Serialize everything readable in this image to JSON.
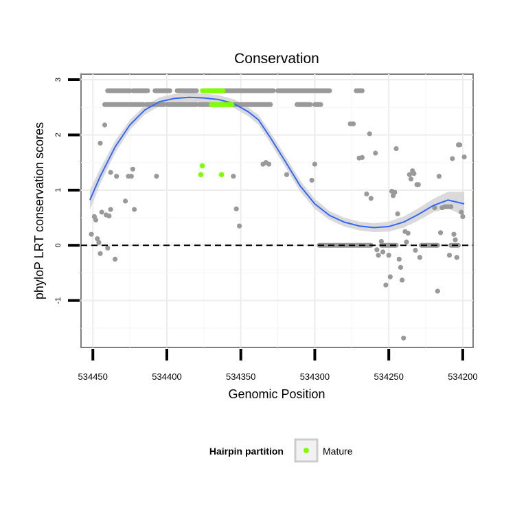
{
  "chart_data": {
    "type": "scatter",
    "title": "Conservation",
    "xlabel": "Genomic Position",
    "ylabel": "phyloP LRT conservation scores",
    "xlim": [
      534458,
      534193
    ],
    "ylim": [
      -1.85,
      3.1
    ],
    "x_ticks": [
      534450,
      534400,
      534350,
      534300,
      534250,
      534200
    ],
    "x_tick_labels": [
      "534450",
      "534400",
      "534350",
      "534300",
      "534250",
      "534200"
    ],
    "y_ticks": [
      -1,
      0,
      1,
      2,
      3
    ],
    "y_tick_labels": [
      "-1",
      "0",
      "1",
      "2",
      "3"
    ],
    "grid": true,
    "reference_line": {
      "y": 0,
      "style": "dashed"
    },
    "legend": {
      "title": "Hairpin partition",
      "entries": [
        {
          "label": "Mature",
          "color": "#7fff00"
        }
      ],
      "position": "bottom"
    },
    "colors": {
      "background_points": "#999999",
      "mature": "#7fff00",
      "smooth": "#3366ff",
      "ribbon": "#d4d4d4"
    },
    "row_bands": [
      {
        "y": 2.8,
        "ranges": [
          [
            534440,
            534425
          ],
          [
            534423,
            534413
          ],
          [
            534408,
            534398
          ],
          [
            534393,
            534380
          ],
          [
            534373,
            534328
          ],
          [
            534325,
            534290
          ],
          [
            534272,
            534268
          ]
        ]
      },
      {
        "y": 2.55,
        "ranges": [
          [
            534442,
            534416
          ],
          [
            534414,
            534402
          ],
          [
            534400,
            534380
          ],
          [
            534378,
            534330
          ],
          [
            534312,
            534303
          ],
          [
            534300,
            534296
          ]
        ]
      },
      {
        "y": 0.0,
        "ranges": [
          [
            534297,
            534262
          ],
          [
            534255,
            534245
          ],
          [
            534228,
            534217
          ],
          [
            534208,
            534203
          ]
        ]
      }
    ],
    "mature_bands": [
      {
        "y": 2.8,
        "range": [
          534376,
          534362
        ]
      },
      {
        "y": 2.55,
        "range": [
          534370,
          534356
        ]
      }
    ],
    "points": [
      [
        534451,
        0.2
      ],
      [
        534449,
        0.52
      ],
      [
        534448,
        0.46
      ],
      [
        534447,
        0.12
      ],
      [
        534446,
        0.05
      ],
      [
        534445,
        -0.15
      ],
      [
        534445,
        1.85
      ],
      [
        534444,
        0.6
      ],
      [
        534442,
        2.18
      ],
      [
        534441,
        0.55
      ],
      [
        534440,
        -0.05
      ],
      [
        534439,
        0.53
      ],
      [
        534438,
        1.32
      ],
      [
        534438,
        0.65
      ],
      [
        534435,
        -0.25
      ],
      [
        534434,
        1.25
      ],
      [
        534428,
        0.8
      ],
      [
        534426,
        1.25
      ],
      [
        534424,
        1.25
      ],
      [
        534423,
        1.38
      ],
      [
        534422,
        0.65
      ],
      [
        534407,
        1.25
      ],
      [
        534355,
        1.25
      ],
      [
        534353,
        0.66
      ],
      [
        534351,
        0.35
      ],
      [
        534335,
        1.47
      ],
      [
        534333,
        1.5
      ],
      [
        534331,
        1.47
      ],
      [
        534319,
        1.28
      ],
      [
        534302,
        1.18
      ],
      [
        534300,
        1.47
      ],
      [
        534298,
        2.55
      ],
      [
        534276,
        2.2
      ],
      [
        534274,
        2.2
      ],
      [
        534270,
        1.58
      ],
      [
        534268,
        1.59
      ],
      [
        534265,
        0.93
      ],
      [
        534263,
        2.02
      ],
      [
        534262,
        0.85
      ],
      [
        534259,
        1.67
      ],
      [
        534258,
        -0.08
      ],
      [
        534257,
        -0.18
      ],
      [
        534255,
        0.07
      ],
      [
        534254,
        -0.12
      ],
      [
        534252,
        -0.72
      ],
      [
        534250,
        -0.18
      ],
      [
        534249,
        -0.57
      ],
      [
        534248,
        0.98
      ],
      [
        534247,
        0.9
      ],
      [
        534246,
        0.96
      ],
      [
        534245,
        1.75
      ],
      [
        534244,
        0.57
      ],
      [
        534243,
        -0.25
      ],
      [
        534242,
        -0.4
      ],
      [
        534241,
        -0.63
      ],
      [
        534240,
        -1.68
      ],
      [
        534239,
        0.25
      ],
      [
        534238,
        0.06
      ],
      [
        534237,
        0.22
      ],
      [
        534236,
        1.28
      ],
      [
        534235,
        1.2
      ],
      [
        534234,
        1.35
      ],
      [
        534233,
        1.3
      ],
      [
        534232,
        -0.09
      ],
      [
        534231,
        1.1
      ],
      [
        534230,
        1.1
      ],
      [
        534229,
        -0.22
      ],
      [
        534219,
        0.68
      ],
      [
        534218,
        0.0
      ],
      [
        534217,
        -0.83
      ],
      [
        534216,
        1.25
      ],
      [
        534215,
        0.23
      ],
      [
        534214,
        0.68
      ],
      [
        534212,
        0.7
      ],
      [
        534210,
        0.7
      ],
      [
        534209,
        -0.18
      ],
      [
        534208,
        0.7
      ],
      [
        534207,
        1.57
      ],
      [
        534206,
        0.2
      ],
      [
        534205,
        0.1
      ],
      [
        534204,
        -0.22
      ],
      [
        534203,
        1.82
      ],
      [
        534202,
        1.82
      ],
      [
        534201,
        0.6
      ],
      [
        534200,
        0.52
      ],
      [
        534199,
        1.6
      ]
    ],
    "mature_points": [
      [
        534376,
        1.44
      ],
      [
        534377,
        1.28
      ],
      [
        534363,
        1.28
      ]
    ],
    "smooth_line": [
      [
        534452,
        0.82
      ],
      [
        534445,
        1.25
      ],
      [
        534435,
        1.78
      ],
      [
        534425,
        2.18
      ],
      [
        534415,
        2.45
      ],
      [
        534405,
        2.6
      ],
      [
        534395,
        2.66
      ],
      [
        534385,
        2.68
      ],
      [
        534375,
        2.67
      ],
      [
        534365,
        2.64
      ],
      [
        534355,
        2.57
      ],
      [
        534345,
        2.42
      ],
      [
        534338,
        2.27
      ],
      [
        534330,
        1.95
      ],
      [
        534320,
        1.52
      ],
      [
        534310,
        1.08
      ],
      [
        534300,
        0.75
      ],
      [
        534290,
        0.54
      ],
      [
        534280,
        0.42
      ],
      [
        534270,
        0.35
      ],
      [
        534260,
        0.32
      ],
      [
        534250,
        0.34
      ],
      [
        534240,
        0.42
      ],
      [
        534230,
        0.56
      ],
      [
        534220,
        0.72
      ],
      [
        534210,
        0.82
      ],
      [
        534199,
        0.75
      ]
    ],
    "ribbon_halfwidth": [
      0.18,
      0.14,
      0.11,
      0.09,
      0.08,
      0.08,
      0.08,
      0.08,
      0.08,
      0.08,
      0.08,
      0.08,
      0.09,
      0.1,
      0.1,
      0.1,
      0.09,
      0.08,
      0.08,
      0.08,
      0.08,
      0.09,
      0.1,
      0.11,
      0.12,
      0.15,
      0.22
    ]
  }
}
